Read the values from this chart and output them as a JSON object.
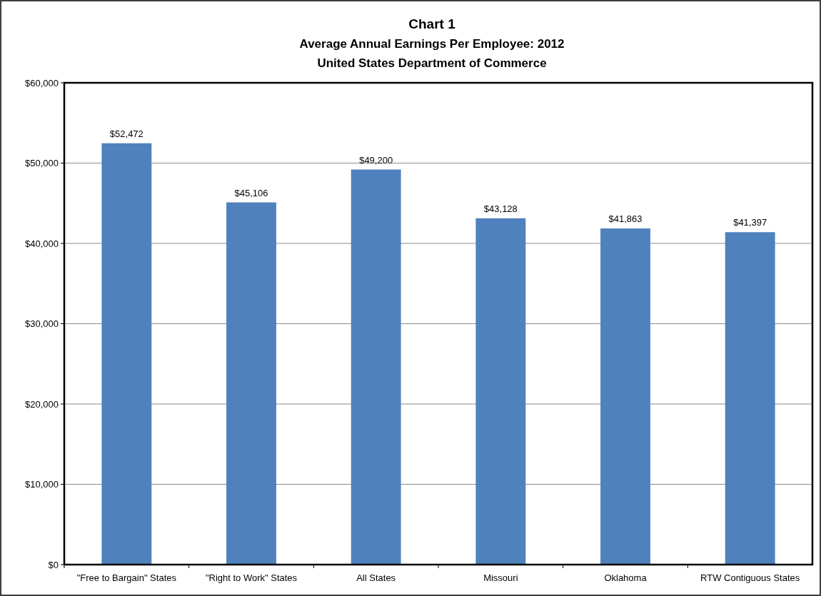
{
  "chart_data": {
    "type": "bar",
    "title": "Chart 1",
    "subtitle": "Average Annual Earnings Per Employee: 2012",
    "annotations": [
      "United States Department of Commerce"
    ],
    "categories": [
      "\"Free to Bargain\" States",
      "\"Right to Work\" States",
      "All States",
      "Missouri",
      "Oklahoma",
      "RTW Contiguous States"
    ],
    "values": [
      52472,
      45106,
      49200,
      43128,
      41863,
      41397
    ],
    "value_labels": [
      "$52,472",
      "$45,106",
      "$49,200",
      "$43,128",
      "$41,863",
      "$41,397"
    ],
    "color": "#4f81bd",
    "ylim": [
      0,
      60000
    ],
    "yticks": [
      {
        "value": 0,
        "label": "$0"
      },
      {
        "value": 10000,
        "label": "$10,000"
      },
      {
        "value": 20000,
        "label": "$20,000"
      },
      {
        "value": 30000,
        "label": "$30,000"
      },
      {
        "value": 40000,
        "label": "$40,000"
      },
      {
        "value": 50000,
        "label": "$50,000"
      },
      {
        "value": 60000,
        "label": "$60,000"
      }
    ],
    "grid": "y"
  }
}
